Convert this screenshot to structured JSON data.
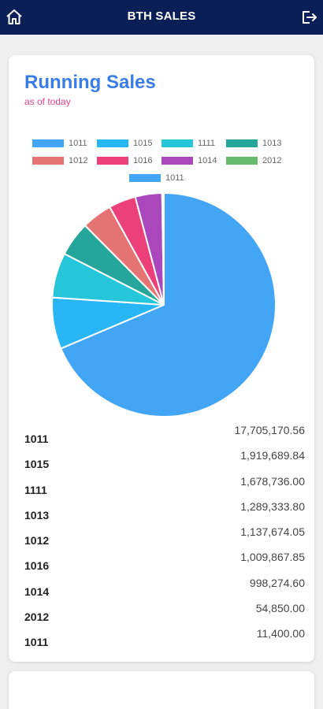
{
  "header": {
    "title": "BTH SALES",
    "left_icon": "home-icon",
    "right_icon": "logout-icon"
  },
  "card": {
    "title": "Running Sales",
    "subtitle": "as of today"
  },
  "chart_data": {
    "type": "pie",
    "categories": [
      "1011",
      "1015",
      "1111",
      "1013",
      "1012",
      "1016",
      "1014",
      "2012",
      "1011"
    ],
    "values": [
      17705170.56,
      1919689.84,
      1678736.0,
      1289333.8,
      1137674.05,
      1009867.85,
      998274.6,
      54850.0,
      11400.0
    ],
    "colors": [
      "#42a5f5",
      "#29b6f6",
      "#26c6da",
      "#26a69a",
      "#e57373",
      "#ec407a",
      "#ab47bc",
      "#66bb6a",
      "#42a5f5"
    ],
    "legend_placement": "top"
  },
  "list": [
    {
      "code": "1011",
      "amount": "17,705,170.56"
    },
    {
      "code": "1015",
      "amount": "1,919,689.84"
    },
    {
      "code": "1111",
      "amount": "1,678,736.00"
    },
    {
      "code": "1013",
      "amount": "1,289,333.80"
    },
    {
      "code": "1012",
      "amount": "1,137,674.05"
    },
    {
      "code": "1016",
      "amount": "1,009,867.85"
    },
    {
      "code": "1014",
      "amount": "998,274.60"
    },
    {
      "code": "2012",
      "amount": "54,850.00"
    },
    {
      "code": "1011",
      "amount": "11,400.00"
    }
  ]
}
